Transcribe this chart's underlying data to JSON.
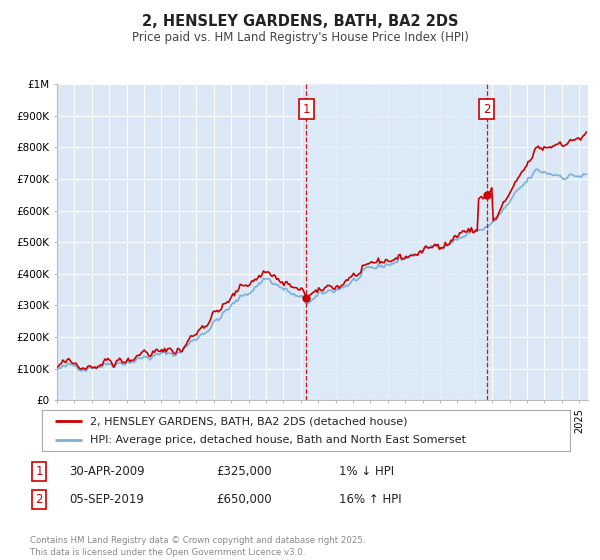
{
  "title": "2, HENSLEY GARDENS, BATH, BA2 2DS",
  "subtitle": "Price paid vs. HM Land Registry's House Price Index (HPI)",
  "ylim": [
    0,
    1000000
  ],
  "xlim_start": 1995.0,
  "xlim_end": 2025.5,
  "fig_bg": "#ffffff",
  "plot_bg": "#dce8f5",
  "shade_bg": "#e8f0fa",
  "grid_color": "#ffffff",
  "hpi_color": "#7ab0d8",
  "price_color": "#cc0000",
  "marker1_x": 2009.33,
  "marker1_y": 325000,
  "marker2_x": 2019.67,
  "marker2_y": 650000,
  "legend_label1": "2, HENSLEY GARDENS, BATH, BA2 2DS (detached house)",
  "legend_label2": "HPI: Average price, detached house, Bath and North East Somerset",
  "annotation1_label": "1",
  "annotation1_date": "30-APR-2009",
  "annotation1_price": "£325,000",
  "annotation1_hpi": "1% ↓ HPI",
  "annotation2_label": "2",
  "annotation2_date": "05-SEP-2019",
  "annotation2_price": "£650,000",
  "annotation2_hpi": "16% ↑ HPI",
  "footer": "Contains HM Land Registry data © Crown copyright and database right 2025.\nThis data is licensed under the Open Government Licence v3.0.",
  "yticks": [
    0,
    100000,
    200000,
    300000,
    400000,
    500000,
    600000,
    700000,
    800000,
    900000,
    1000000
  ],
  "ytick_labels": [
    "£0",
    "£100K",
    "£200K",
    "£300K",
    "£400K",
    "£500K",
    "£600K",
    "£700K",
    "£800K",
    "£900K",
    "£1M"
  ]
}
